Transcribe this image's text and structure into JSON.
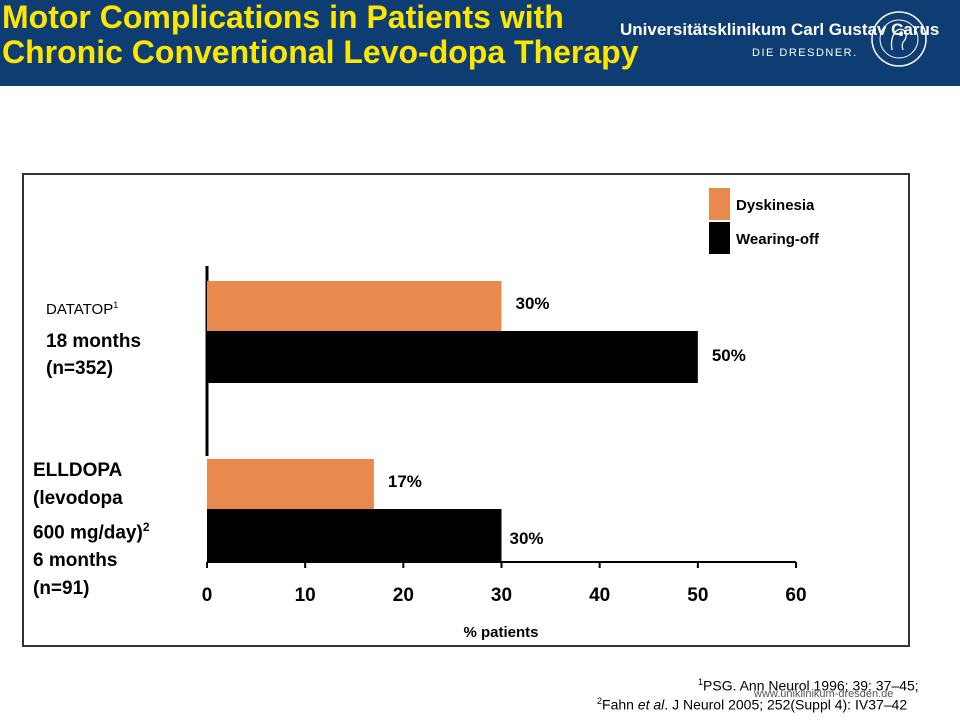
{
  "header": {
    "title_line1": "Motor Complications in Patients with",
    "title_line2": "Chronic Conventional Levo-dopa Therapy",
    "institution": "Universitätsklinikum Carl Gustav Carus",
    "institution_sub": "DIE DRESDNER."
  },
  "colors": {
    "header_bg": "#0d3d73",
    "title": "#ffe600",
    "dyskinesia": "#e8894d",
    "wearing_off": "#000000"
  },
  "groups": {
    "datatop": {
      "name": "DATATOP",
      "ref": "1",
      "line2": "18 months",
      "line3": "(n=352)"
    },
    "elldopa": {
      "line1": "ELLDOPA",
      "line2": "(levodopa",
      "line3": "600 mg/day)",
      "ref": "2",
      "line4": "6 months",
      "line5": "(n=91)"
    }
  },
  "chart_data": {
    "type": "bar",
    "orientation": "horizontal",
    "categories": [
      "DATATOP",
      "ELLDOPA"
    ],
    "series": [
      {
        "name": "Dyskinesia",
        "values": [
          30,
          17
        ],
        "labels": [
          "30%",
          "17%"
        ],
        "color": "#e8894d"
      },
      {
        "name": "Wearing-off",
        "values": [
          50,
          30
        ],
        "labels": [
          "50%",
          "30%"
        ],
        "color": "#000000"
      }
    ],
    "xlabel": "% patients",
    "xlim": [
      0,
      60
    ],
    "xticks": [
      "0",
      "10",
      "20",
      "30",
      "40",
      "50",
      "60"
    ],
    "legend_position": "top-right",
    "grid": false
  },
  "footnotes": {
    "ref1_num": "1",
    "ref1_text": "PSG. Ann Neurol 1996; 39: 37–45;",
    "ref2_num": "2",
    "ref2_pre": "Fahn ",
    "ref2_etal": "et al",
    "ref2_post": ". J Neurol 2005; 252(Suppl 4): IV37–42"
  },
  "url": "www.uniklinikum-dresden.de"
}
